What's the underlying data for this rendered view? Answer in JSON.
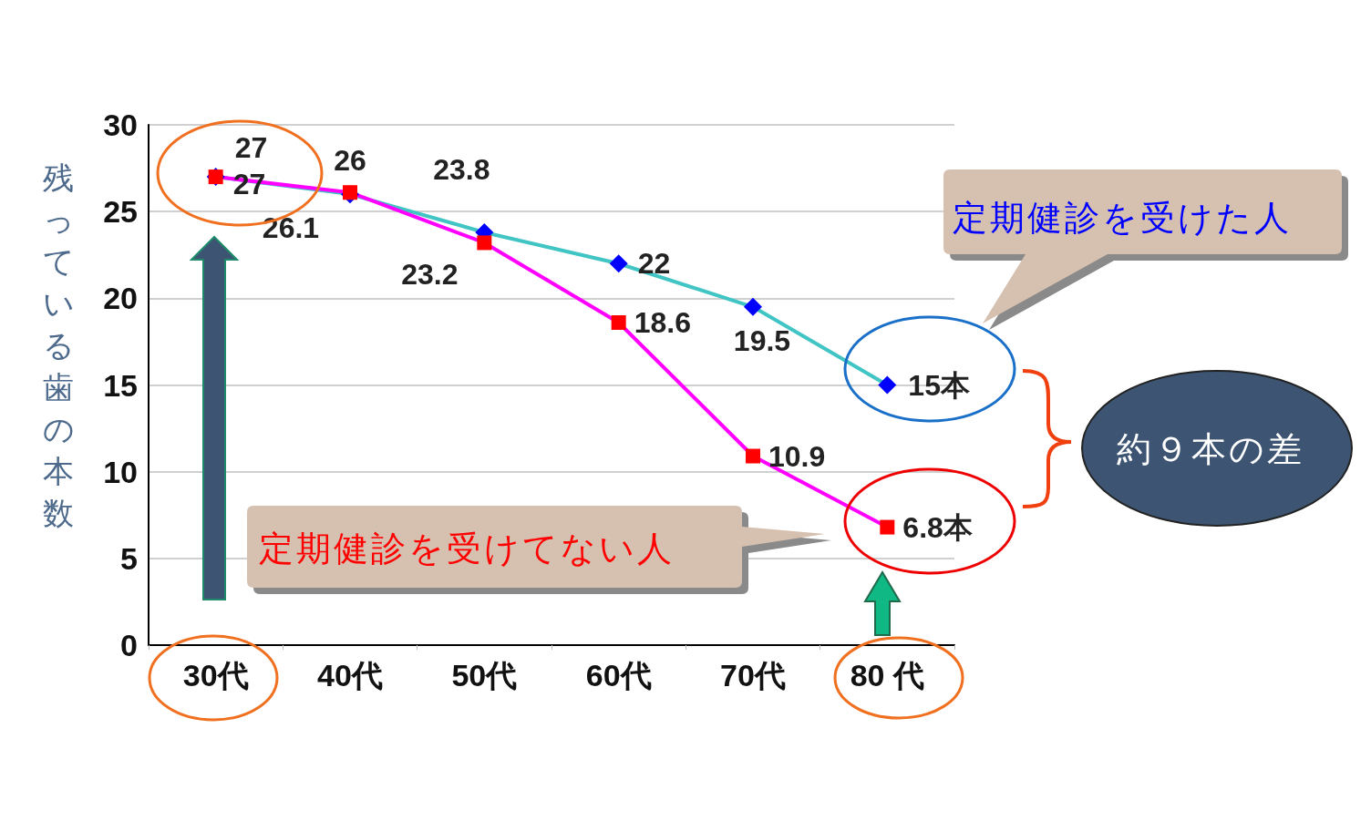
{
  "chart_data": {
    "type": "line",
    "ylabel": "残っている歯の本数",
    "categories": [
      "30代",
      "40代",
      "50代",
      "60代",
      "70代",
      "80 代"
    ],
    "series": [
      {
        "name": "定期健診を受けた人",
        "color": "#40c4c4",
        "colors": [
          "#0000ff",
          "#0000ff",
          "#0000ff",
          "#0000ff",
          "#0000ff",
          "#0000ff"
        ],
        "marker": "diamond",
        "values": [
          27,
          26,
          23.8,
          22,
          19.5,
          15
        ],
        "value_labels": [
          "27",
          "26",
          "23.8",
          "22",
          "19.5",
          "15本"
        ]
      },
      {
        "name": "定期健診を受けてない人",
        "color": "#ff00ff",
        "colors": [
          "#ff0000",
          "#ff0000",
          "#ff0000",
          "#ff0000",
          "#ff0000",
          "#ff0000"
        ],
        "marker": "square",
        "values": [
          27,
          26.1,
          23.2,
          18.6,
          10.9,
          6.8
        ],
        "value_labels": [
          "27",
          "26.1",
          "23.2",
          "18.6",
          "10.9",
          "6.8本"
        ]
      }
    ],
    "ylim": [
      0,
      30
    ],
    "yticks": [
      0,
      5,
      10,
      15,
      20,
      25,
      30
    ],
    "grid": "y",
    "legend": false,
    "annotations": [
      "約９本の差"
    ]
  }
}
